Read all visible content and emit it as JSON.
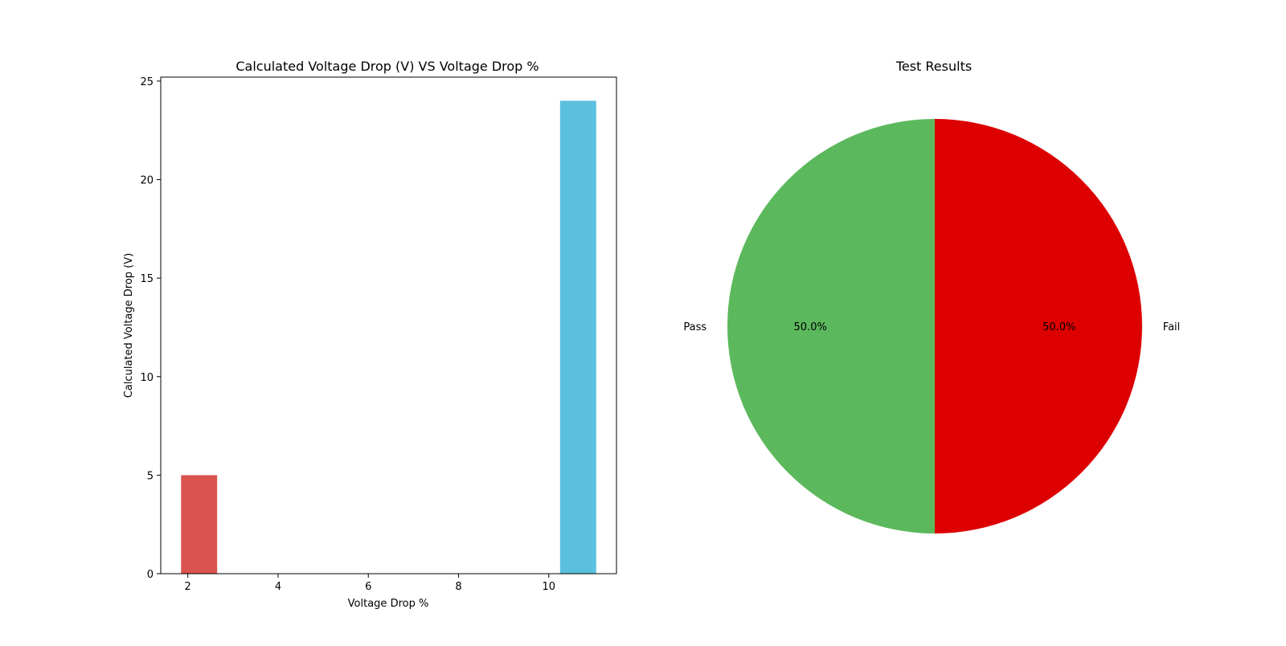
{
  "colors": {
    "bar_low": "#d9534f",
    "bar_high": "#5bc0de",
    "pass": "#5cb85c",
    "fail": "#dd0000",
    "axis": "#000000",
    "background": "#ffffff"
  },
  "chart_data": [
    {
      "type": "bar",
      "title": "Calculated Voltage Drop (V) VS Voltage Drop %",
      "xlabel": "Voltage Drop %",
      "ylabel": "Calculated Voltage Drop (V)",
      "x": [
        2.25,
        10.65
      ],
      "values": [
        5,
        24
      ],
      "bar_width": 0.8,
      "bar_colors": [
        "#d9534f",
        "#5bc0de"
      ],
      "xlim": [
        1.4,
        11.5
      ],
      "ylim": [
        0,
        25.2
      ],
      "xticks": [
        2,
        4,
        6,
        8,
        10
      ],
      "yticks": [
        0,
        5,
        10,
        15,
        20,
        25
      ],
      "grid": false
    },
    {
      "type": "pie",
      "title": "Test Results",
      "labels": [
        "Pass",
        "Fail"
      ],
      "values": [
        50.0,
        50.0
      ],
      "pct_labels": [
        "50.0%",
        "50.0%"
      ],
      "colors": [
        "#5cb85c",
        "#dd0000"
      ],
      "start_angle_deg": 90,
      "direction": "counterclockwise"
    }
  ]
}
